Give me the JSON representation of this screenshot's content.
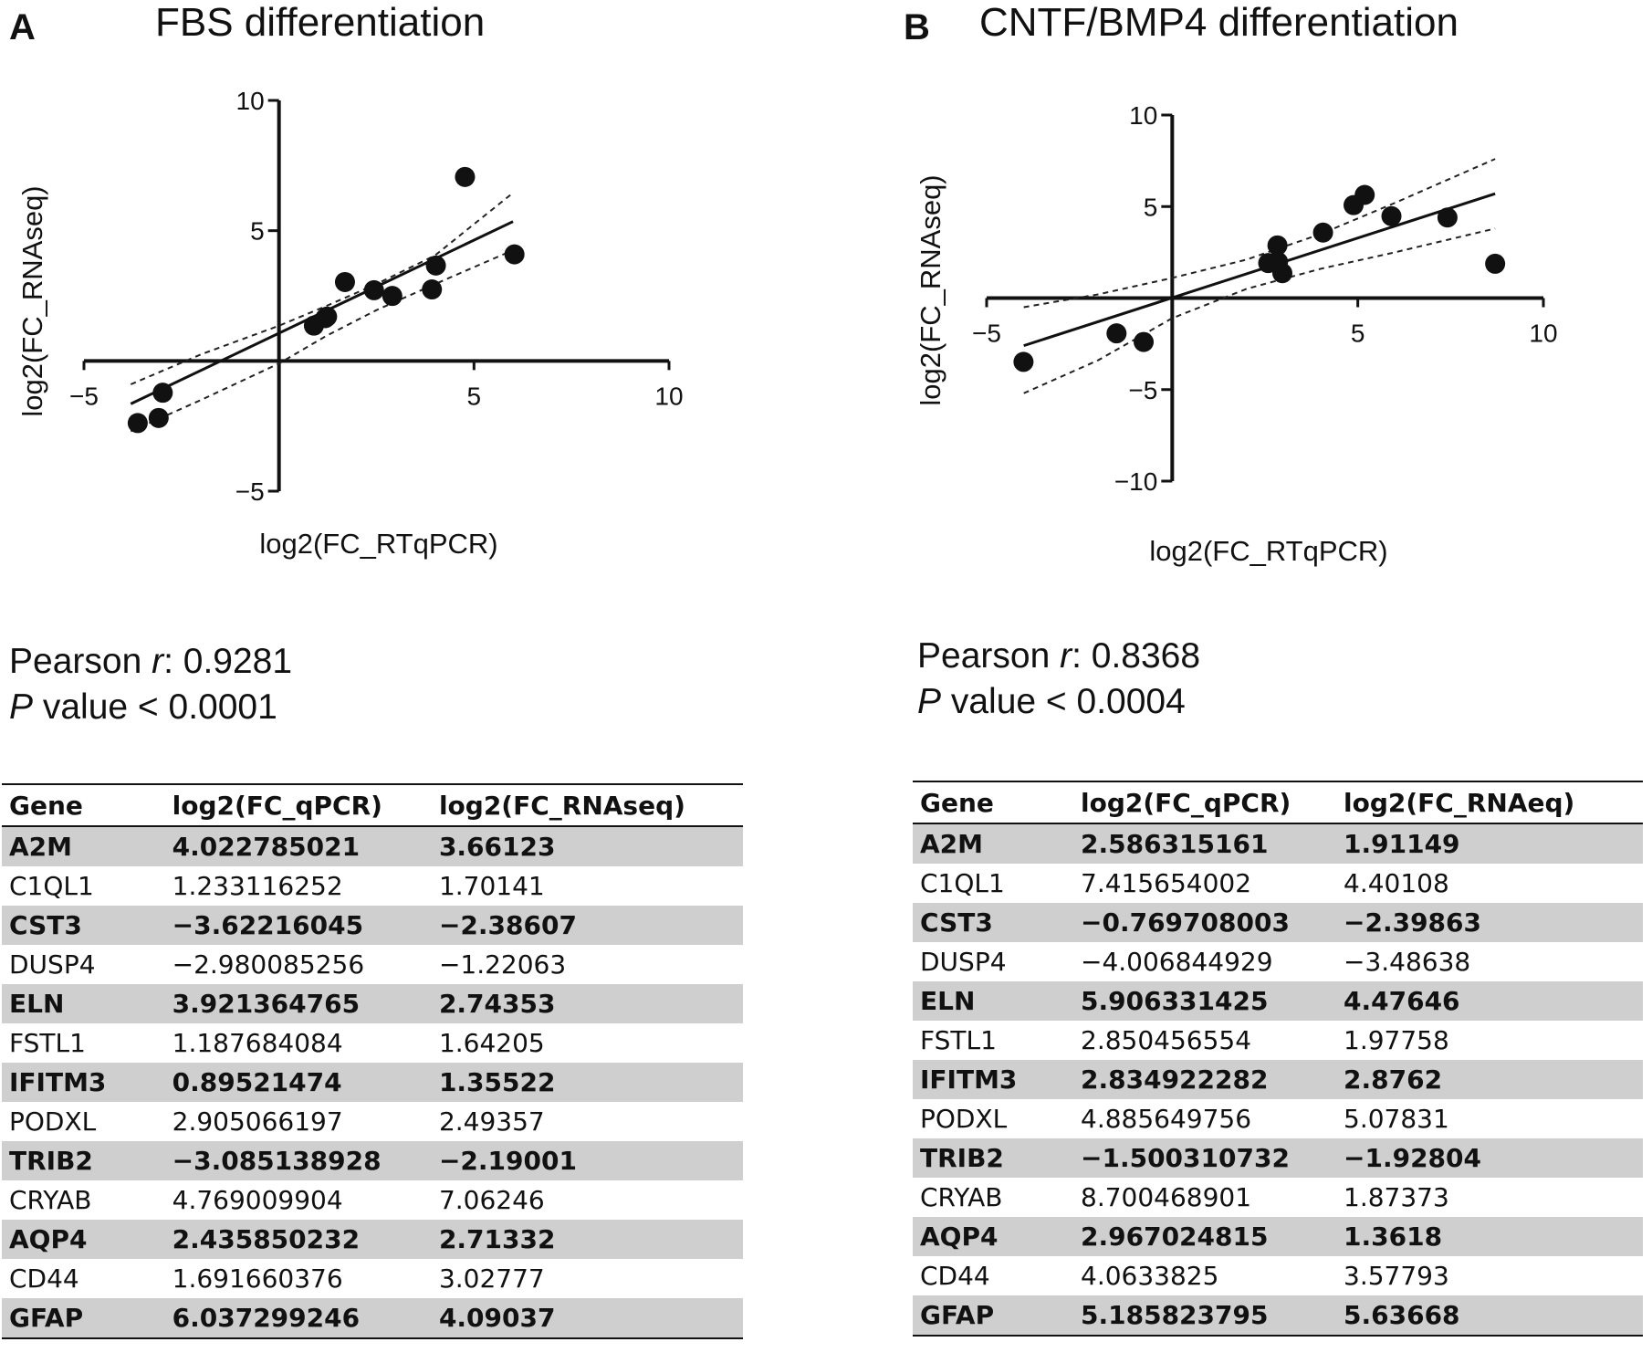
{
  "panels": [
    {
      "letter": "A",
      "title": "FBS differentiation",
      "stats": {
        "r_label": "Pearson ",
        "r_italic": "r",
        "r_value": ": 0.9281",
        "p_italic": "P",
        "p_value": " value < 0.0001"
      },
      "table": {
        "headers": [
          "Gene",
          "log2(FC_qPCR)",
          "log2(FC_RNAseq)"
        ],
        "rows": [
          [
            "A2M",
            "4.022785021",
            "3.66123"
          ],
          [
            "C1QL1",
            "1.233116252",
            "1.70141"
          ],
          [
            "CST3",
            "−3.62216045",
            "−2.38607"
          ],
          [
            "DUSP4",
            "−2.980085256",
            "−1.22063"
          ],
          [
            "ELN",
            "3.921364765",
            "2.74353"
          ],
          [
            "FSTL1",
            "1.187684084",
            "1.64205"
          ],
          [
            "IFITM3",
            "0.89521474",
            "1.35522"
          ],
          [
            "PODXL",
            "2.905066197",
            "2.49357"
          ],
          [
            "TRIB2",
            "−3.085138928",
            "−2.19001"
          ],
          [
            "CRYAB",
            "4.769009904",
            "7.06246"
          ],
          [
            "AQP4",
            "2.435850232",
            "2.71332"
          ],
          [
            "CD44",
            "1.691660376",
            "3.02777"
          ],
          [
            "GFAP",
            "6.037299246",
            "4.09037"
          ]
        ]
      }
    },
    {
      "letter": "B",
      "title": "CNTF/BMP4 differentiation",
      "stats": {
        "r_label": "Pearson ",
        "r_italic": "r",
        "r_value": ": 0.8368",
        "p_italic": "P",
        "p_value": " value < 0.0004"
      },
      "table": {
        "headers": [
          "Gene",
          "log2(FC_qPCR)",
          "log2(FC_RNAeq)"
        ],
        "rows": [
          [
            "A2M",
            "2.586315161",
            "1.91149"
          ],
          [
            "C1QL1",
            "7.415654002",
            "4.40108"
          ],
          [
            "CST3",
            "−0.769708003",
            "−2.39863"
          ],
          [
            "DUSP4",
            "−4.006844929",
            "−3.48638"
          ],
          [
            "ELN",
            "5.906331425",
            "4.47646"
          ],
          [
            "FSTL1",
            "2.850456554",
            "1.97758"
          ],
          [
            "IFITM3",
            "2.834922282",
            "2.8762"
          ],
          [
            "PODXL",
            "4.885649756",
            "5.07831"
          ],
          [
            "TRIB2",
            "−1.500310732",
            "−1.92804"
          ],
          [
            "CRYAB",
            "8.700468901",
            "1.87373"
          ],
          [
            "AQP4",
            "2.967024815",
            "1.3618"
          ],
          [
            "CD44",
            "4.0633825",
            "3.57793"
          ],
          [
            "GFAP",
            "5.185823795",
            "5.63668"
          ]
        ]
      }
    }
  ],
  "chart_data": [
    {
      "type": "scatter",
      "title": "FBS differentiation",
      "xlabel": "log2(FC_RTqPCR)",
      "ylabel": "log2(FC_RNAseq)",
      "xlim": [
        -5,
        10
      ],
      "ylim": [
        -5,
        10
      ],
      "xticks": [
        -5,
        5,
        10
      ],
      "yticks": [
        10,
        5,
        -5
      ],
      "grid": false,
      "x": [
        4.022785021,
        1.233116252,
        -3.62216045,
        -2.980085256,
        3.921364765,
        1.187684084,
        0.89521474,
        2.905066197,
        -3.085138928,
        4.769009904,
        2.435850232,
        1.691660376,
        6.037299246
      ],
      "y": [
        3.66123,
        1.70141,
        -2.38607,
        -1.22063,
        2.74353,
        1.64205,
        1.35522,
        2.49357,
        -2.19001,
        7.06246,
        2.71332,
        3.02777,
        4.09037
      ],
      "regression": {
        "x": [
          -3.8,
          6.0
        ],
        "y": [
          -1.65,
          5.35
        ]
      },
      "confidence_upper": {
        "x": [
          -3.8,
          -2,
          0,
          1.2,
          2.5,
          4,
          6.0
        ],
        "y": [
          -0.9,
          0.25,
          1.35,
          2.1,
          2.95,
          4.05,
          6.45
        ]
      },
      "confidence_lower": {
        "x": [
          -3.8,
          -2,
          0,
          1.2,
          2.5,
          4,
          6.0
        ],
        "y": [
          -2.7,
          -1.5,
          -0.1,
          0.95,
          1.95,
          2.95,
          4.25
        ]
      }
    },
    {
      "type": "scatter",
      "title": "CNTF/BMP4 differentiation",
      "xlabel": "log2(FC_RTqPCR)",
      "ylabel": "log2(FC_RNAseq)",
      "xlim": [
        -5,
        10
      ],
      "ylim": [
        -10,
        10
      ],
      "xticks": [
        -5,
        5,
        10
      ],
      "yticks": [
        10,
        5,
        -5,
        -10
      ],
      "grid": false,
      "x": [
        2.586315161,
        7.415654002,
        -0.769708003,
        -4.006844929,
        5.906331425,
        2.850456554,
        2.834922282,
        4.885649756,
        -1.500310732,
        8.700468901,
        2.967024815,
        4.0633825,
        5.185823795
      ],
      "y": [
        1.91149,
        4.40108,
        -2.39863,
        -3.48638,
        4.47646,
        1.97758,
        2.8762,
        5.07831,
        -1.92804,
        1.87373,
        1.3618,
        3.57793,
        5.63668
      ],
      "regression": {
        "x": [
          -4.0,
          8.7
        ],
        "y": [
          -2.6,
          5.7
        ]
      },
      "confidence_upper": {
        "x": [
          -4.0,
          -2,
          0,
          2,
          4,
          6,
          8.7
        ],
        "y": [
          -0.5,
          0.2,
          1.1,
          2.1,
          3.5,
          5.2,
          7.6
        ]
      },
      "confidence_lower": {
        "x": [
          -4.0,
          -2,
          0,
          2,
          4,
          6,
          8.7
        ],
        "y": [
          -5.2,
          -3.4,
          -1.1,
          0.5,
          1.6,
          2.5,
          3.8
        ]
      }
    }
  ]
}
